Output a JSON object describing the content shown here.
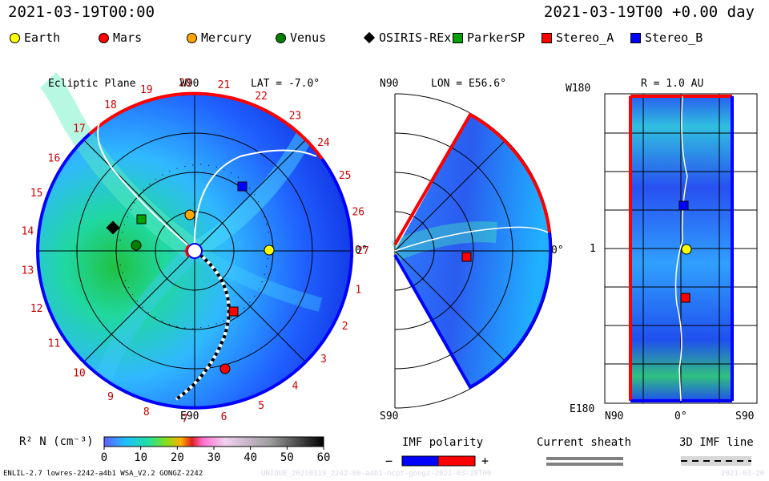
{
  "header": {
    "title_left": "2021-03-19T00:00",
    "title_right": "2021-03-19T00 +0.00 day"
  },
  "legend": [
    {
      "name": "Earth",
      "shape": "circle",
      "color": "#ffff00"
    },
    {
      "name": "Mars",
      "shape": "circle",
      "color": "#ff0000"
    },
    {
      "name": "Mercury",
      "shape": "circle",
      "color": "#ffa500"
    },
    {
      "name": "Venus",
      "shape": "circle",
      "color": "#008000"
    },
    {
      "name": "OSIRIS-REx",
      "shape": "diamond",
      "color": "#000000"
    },
    {
      "name": "ParkerSP",
      "shape": "square",
      "color": "#00a000"
    },
    {
      "name": "Stereo_A",
      "shape": "square",
      "color": "#ff0000"
    },
    {
      "name": "Stereo_B",
      "shape": "square",
      "color": "#0000ff"
    }
  ],
  "panel1": {
    "title": "Ecliptic Plane",
    "lat_label": "LAT = -7.0°",
    "top_label": "W90",
    "bottom_label": "E90",
    "right_label": "0°",
    "carrington_numbers": [
      "1",
      "2",
      "3",
      "4",
      "5",
      "6",
      "7",
      "8",
      "9",
      "10",
      "11",
      "12",
      "13",
      "14",
      "15",
      "16",
      "17",
      "18",
      "19",
      "20",
      "21",
      "22",
      "23",
      "24",
      "25",
      "26",
      "27"
    ]
  },
  "panel2": {
    "top_label": "N90",
    "lon_label": "LON = E56.6°",
    "bottom_label": "S90",
    "right_label": "0°"
  },
  "panel3": {
    "top_label": "W180",
    "r_label": "R = 1.0 AU",
    "left_mid_label": "1",
    "bottom_left_label": "E180",
    "x_ticks": [
      "N90",
      "0°",
      "S90"
    ]
  },
  "colorbar": {
    "label": "R² N (cm⁻³)",
    "ticks": [
      "0",
      "10",
      "20",
      "30",
      "40",
      "50",
      "60"
    ],
    "min": 0,
    "max": 60
  },
  "imf": {
    "title": "IMF polarity",
    "minus": "−",
    "plus": "+",
    "colors": [
      "#0000ff",
      "#ff0000"
    ]
  },
  "current_sheath": {
    "title": "Current sheath"
  },
  "imf_line": {
    "title": "3D IMF line"
  },
  "footer": {
    "left": "ENLIL-2.7 lowres-2242-a4b1 WSA_V2.2 GONGZ-2242",
    "right": "UNIQUE_20210319_2242-00-a4b1-ncpt-gongz-2021-03-19T00",
    "date": "2021-03-20"
  },
  "chart_data": [
    {
      "type": "heatmap",
      "title": "Ecliptic Plane",
      "label": "LAT = -7.0°"
    },
    {
      "type": "heatmap",
      "label": "LON = E56.6°"
    },
    {
      "type": "heatmap",
      "label": "R = 1.0 AU"
    }
  ]
}
